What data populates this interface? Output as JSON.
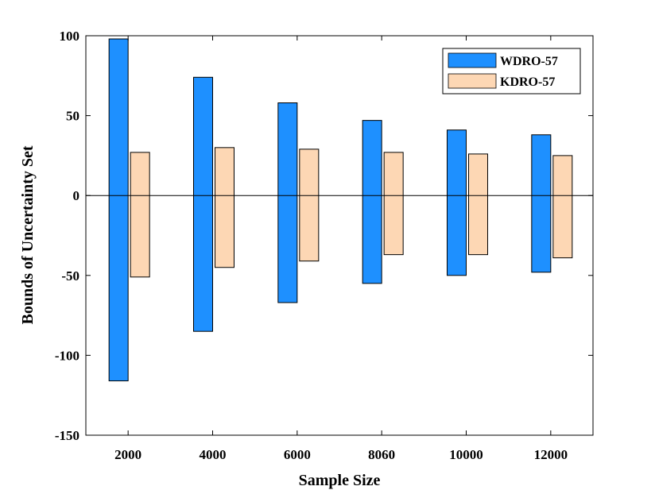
{
  "chart_data": {
    "type": "bar",
    "categories": [
      "2000",
      "4000",
      "6000",
      "8060",
      "10000",
      "12000"
    ],
    "series": [
      {
        "name": "WDRO-57",
        "color": "#1e90ff",
        "lower": [
          -116,
          -85,
          -67,
          -55,
          -50,
          -48
        ],
        "upper": [
          98,
          74,
          58,
          47,
          41,
          38
        ]
      },
      {
        "name": "KDRO-57",
        "color": "#fdd7b4",
        "lower": [
          -51,
          -45,
          -41,
          -37,
          -37,
          -39
        ],
        "upper": [
          27,
          30,
          29,
          27,
          26,
          25
        ]
      }
    ],
    "xlabel": "Sample Size",
    "ylabel": "Bounds of Uncertainty Set",
    "ylim": [
      -150,
      100
    ],
    "yticks": [
      "100",
      "50",
      "0",
      "-50",
      "-100",
      "-150"
    ],
    "ytick_values": [
      100,
      50,
      0,
      -50,
      -100,
      -150
    ],
    "zero_line": true,
    "grid": false,
    "legend_position": "top-right"
  }
}
